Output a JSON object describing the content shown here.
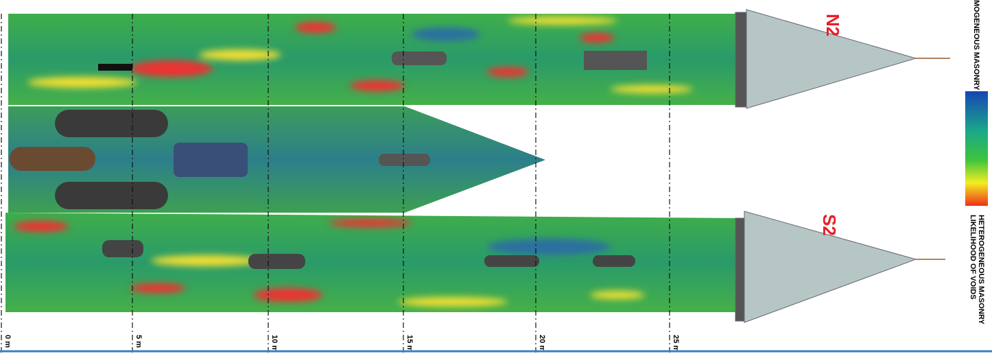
{
  "figure": {
    "facades": [
      {
        "label": "N2"
      },
      {
        "label": "S2"
      }
    ],
    "scale": {
      "labels": [
        "0 m",
        "5 m",
        "10 m",
        "15 m",
        "20 m",
        "25 m"
      ]
    },
    "legend": {
      "top": "MOGENEOUS MASONRY",
      "bottom": "HETEROGENEOUS MASONRY",
      "caption": "LIKELIHOOD OF VOIDS"
    }
  }
}
